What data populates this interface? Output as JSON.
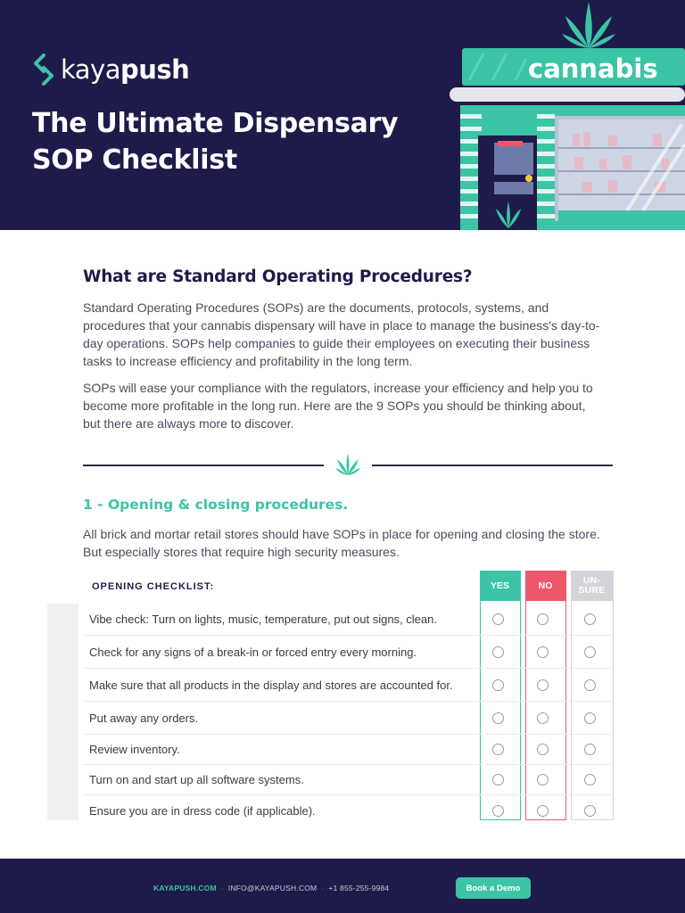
{
  "header": {
    "logo": {
      "part1": "kaya",
      "part2": "push"
    },
    "title_line1": "The Ultimate Dispensary",
    "title_line2": "SOP Checklist",
    "store_sign": "cannabis"
  },
  "intro_section": {
    "heading": "What are Standard Operating Procedures?",
    "paragraph1": "Standard Operating Procedures (SOPs) are the documents, protocols, systems, and procedures that your cannabis dispensary will have in place to manage the business's day-to-day operations. SOPs help companies to guide their employees on executing their business tasks to increase efficiency and profitability in the long term.",
    "paragraph2": "SOPs will ease your compliance with the regulators, increase your efficiency and help you to become more profitable in the long run. Here are the 9 SOPs you should be thinking about, but there are always more to discover."
  },
  "section1": {
    "heading": "1 - Opening & closing procedures.",
    "intro": "All brick and mortar retail stores should have SOPs in place for opening and closing the store. But especially stores that require high security measures."
  },
  "checklist": {
    "title": "OPENING CHECKLIST:",
    "col_yes": "YES",
    "col_no": "NO",
    "col_unsure_1": "UN-",
    "col_unsure_2": "SURE",
    "items": [
      "Vibe check: Turn on lights, music, temperature, put out signs, clean.",
      "Check for any signs of a break-in or forced entry every morning.",
      "Make sure that all products in the display and stores are accounted for.",
      "Put away any orders.",
      "Review inventory.",
      "Turn on and start up all software systems.",
      "Ensure you are in dress code (if applicable)."
    ]
  },
  "footer": {
    "site": "KAYAPUSH.COM",
    "email": "INFO@KAYAPUSH.COM",
    "phone": "+1 855-255-9984",
    "demo_button": "Book a Demo"
  },
  "colors": {
    "navy": "#1e1b4b",
    "teal": "#3cc4a6",
    "red": "#f0566a",
    "gray": "#d4d4da"
  }
}
